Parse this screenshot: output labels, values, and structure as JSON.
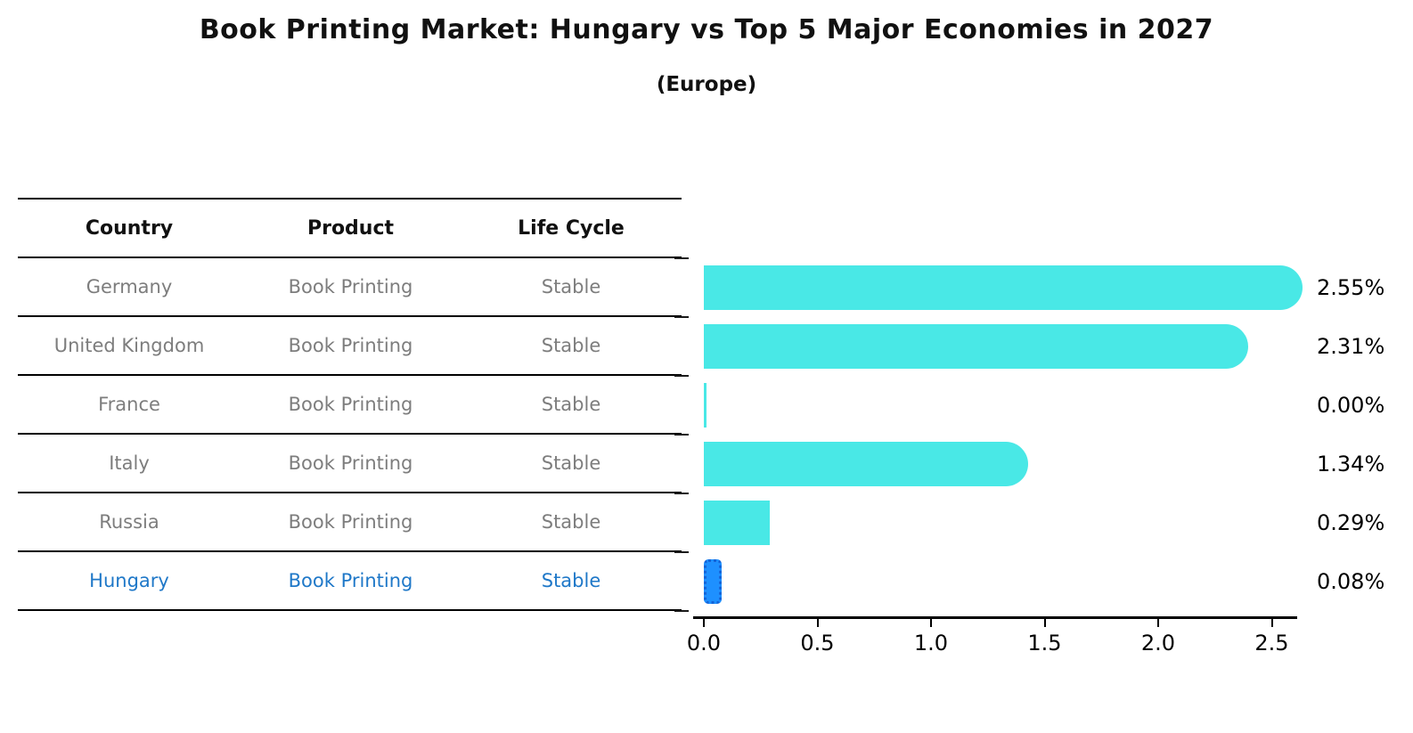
{
  "title": "Book Printing Market: Hungary vs Top 5 Major Economies in 2027",
  "subtitle": "(Europe)",
  "table": {
    "headers": [
      "Country",
      "Product",
      "Life Cycle"
    ],
    "rows": [
      {
        "country": "Germany",
        "product": "Book Printing",
        "life_cycle": "Stable",
        "highlight": false
      },
      {
        "country": "United Kingdom",
        "product": "Book Printing",
        "life_cycle": "Stable",
        "highlight": false
      },
      {
        "country": "France",
        "product": "Book Printing",
        "life_cycle": "Stable",
        "highlight": false
      },
      {
        "country": "Italy",
        "product": "Book Printing",
        "life_cycle": "Stable",
        "highlight": false
      },
      {
        "country": "Russia",
        "product": "Book Printing",
        "life_cycle": "Stable",
        "highlight": false
      },
      {
        "country": "Hungary",
        "product": "Book Printing",
        "life_cycle": "Stable",
        "highlight": true
      }
    ]
  },
  "chart_data": {
    "type": "bar",
    "orientation": "horizontal",
    "title": "Book Printing Market: Hungary vs Top 5 Major Economies in 2027 (Europe)",
    "categories": [
      "Germany",
      "United Kingdom",
      "France",
      "Italy",
      "Russia",
      "Hungary"
    ],
    "values": [
      2.55,
      2.31,
      0.0,
      1.34,
      0.29,
      0.08
    ],
    "value_labels": [
      "2.55%",
      "2.31%",
      "0.00%",
      "1.34%",
      "0.29%",
      "0.08%"
    ],
    "xlabel": "",
    "ylabel": "",
    "xlim": [
      0,
      2.7
    ],
    "xticks": [
      "0.0",
      "0.5",
      "1.0",
      "1.5",
      "2.0",
      "2.5"
    ],
    "grid": false,
    "legend": "none",
    "highlight_index": 5
  },
  "colors": {
    "bar": "#49e8e6",
    "highlight_bar": "#1e90ff",
    "highlight_border": "#1464d8",
    "highlight_text": "#1f78c8",
    "row_text": "#7d7d7d",
    "axis": "#000000"
  }
}
